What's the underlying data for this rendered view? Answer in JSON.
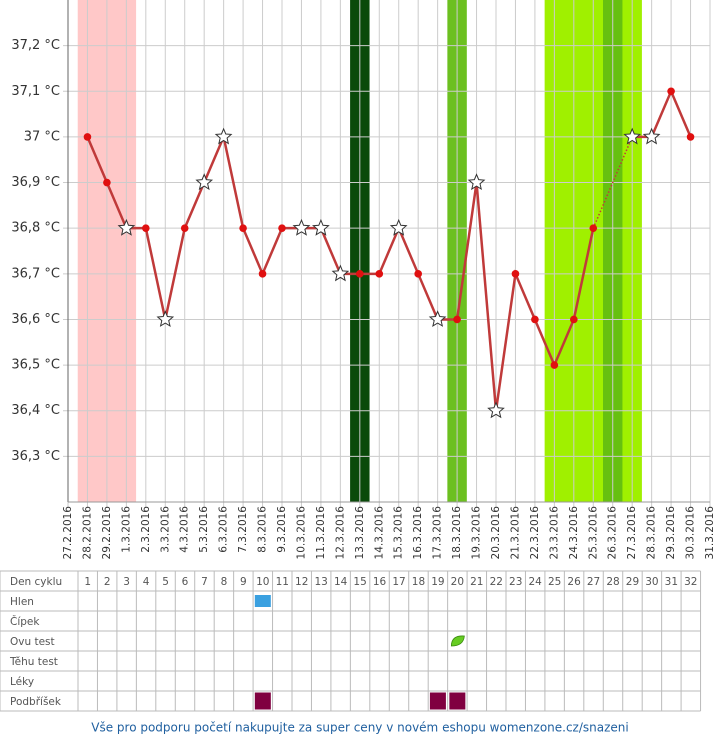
{
  "chart_data": {
    "type": "line",
    "categories": [
      "27.2.2016",
      "28.2.2016",
      "29.2.2016",
      "1.3.2016",
      "2.3.2016",
      "3.3.2016",
      "4.3.2016",
      "5.3.2016",
      "6.3.2016",
      "7.3.2016",
      "8.3.2016",
      "9.3.2016",
      "10.3.2016",
      "11.3.2016",
      "12.3.2016",
      "13.3.2016",
      "14.3.2016",
      "15.3.2016",
      "16.3.2016",
      "17.3.2016",
      "18.3.2016",
      "19.3.2016",
      "20.3.2016",
      "21.3.2016",
      "22.3.2016",
      "23.3.2016",
      "24.3.2016",
      "25.3.2016",
      "26.3.2016",
      "27.3.2016",
      "28.3.2016",
      "29.3.2016",
      "30.3.2016",
      "31.3.2016"
    ],
    "values": [
      null,
      37.0,
      36.9,
      36.8,
      36.8,
      36.6,
      36.8,
      36.9,
      37.0,
      36.8,
      36.7,
      36.8,
      36.8,
      36.8,
      36.7,
      36.7,
      36.7,
      36.8,
      36.7,
      36.6,
      36.6,
      36.9,
      36.4,
      36.7,
      36.6,
      36.5,
      36.6,
      36.8,
      null,
      37.0,
      37.0,
      37.1,
      37.0,
      null
    ],
    "markers": [
      null,
      "dot",
      "dot",
      "star",
      "dot",
      "star",
      "dot",
      "star",
      "star",
      "dot",
      "dot",
      "dot",
      "star",
      "star",
      "star",
      "dot",
      "dot",
      "star",
      "dot",
      "star",
      "dot",
      "star",
      "star",
      "dot",
      "dot",
      "dot",
      "dot",
      "dot",
      null,
      "star",
      "star",
      "dot",
      "dot",
      null
    ],
    "color": "#c03a3a",
    "marker_color": "#e01010",
    "ylim": [
      36.2,
      37.3
    ],
    "yticks": [
      {
        "value": 36.3,
        "label": "36,3 °C"
      },
      {
        "value": 36.4,
        "label": "36,4 °C"
      },
      {
        "value": 36.5,
        "label": "36,5 °C"
      },
      {
        "value": 36.6,
        "label": "36,6 °C"
      },
      {
        "value": 36.7,
        "label": "36,7 °C"
      },
      {
        "value": 36.8,
        "label": "36,8 °C"
      },
      {
        "value": 36.9,
        "label": "36,9 °C"
      },
      {
        "value": 37.0,
        "label": "37 °C"
      },
      {
        "value": 37.1,
        "label": "37,1 °C"
      },
      {
        "value": 37.2,
        "label": "37,2 °C"
      }
    ],
    "grid": true,
    "bands": [
      {
        "from": 1,
        "to": 3,
        "color": "#ffc8c8"
      },
      {
        "from": 15,
        "to": 15,
        "color": "#0a4a0a"
      },
      {
        "from": 20,
        "to": 20,
        "color": "#6cc020"
      },
      {
        "from": 25,
        "to": 29,
        "color": "#a0f000"
      },
      {
        "from": 28,
        "to": 28,
        "color": "#66c010"
      }
    ]
  },
  "table": {
    "header": "Den cyklu",
    "days": [
      1,
      2,
      3,
      4,
      5,
      6,
      7,
      8,
      9,
      10,
      11,
      12,
      13,
      14,
      15,
      16,
      17,
      18,
      19,
      20,
      21,
      22,
      23,
      24,
      25,
      26,
      27,
      28,
      29,
      30,
      31,
      32
    ],
    "rows": [
      {
        "label": "Hlen",
        "marks": [
          10
        ],
        "color": "#3aa0e0",
        "shape": "square"
      },
      {
        "label": "Čípek",
        "marks": [],
        "color": "#999",
        "shape": "square"
      },
      {
        "label": "Ovu test",
        "marks": [
          20
        ],
        "color": "#66cc22",
        "shape": "leaf"
      },
      {
        "label": "Těhu test",
        "marks": [],
        "color": "#999",
        "shape": "square"
      },
      {
        "label": "Léky",
        "marks": [],
        "color": "#999",
        "shape": "square"
      },
      {
        "label": "Podbříšek",
        "marks": [
          10,
          19,
          20
        ],
        "color": "#800040",
        "shape": "square"
      }
    ]
  },
  "footer": "Vše pro podporu početí nakupujte za super ceny v novém eshopu womenzone.cz/snazeni"
}
